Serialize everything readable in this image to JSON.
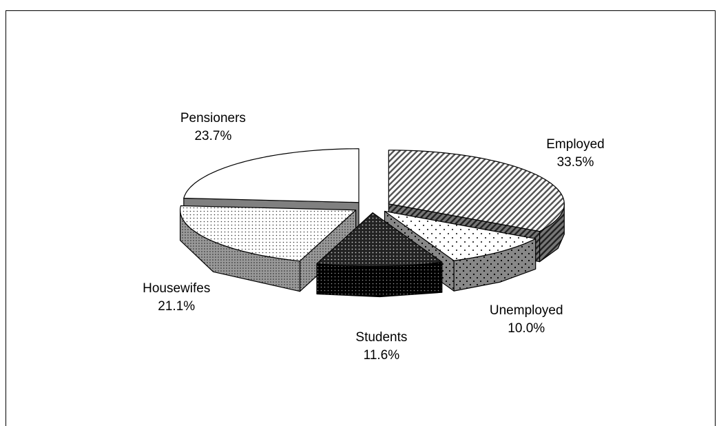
{
  "chart_data": {
    "type": "pie",
    "categories": [
      "Employed",
      "Unemployed",
      "Students",
      "Housewifes",
      "Pensioners"
    ],
    "values": [
      33.5,
      10.0,
      11.6,
      21.1,
      23.7
    ],
    "value_labels": [
      "33.5%",
      "10.0%",
      "11.6%",
      "21.1%",
      "23.7%"
    ]
  }
}
